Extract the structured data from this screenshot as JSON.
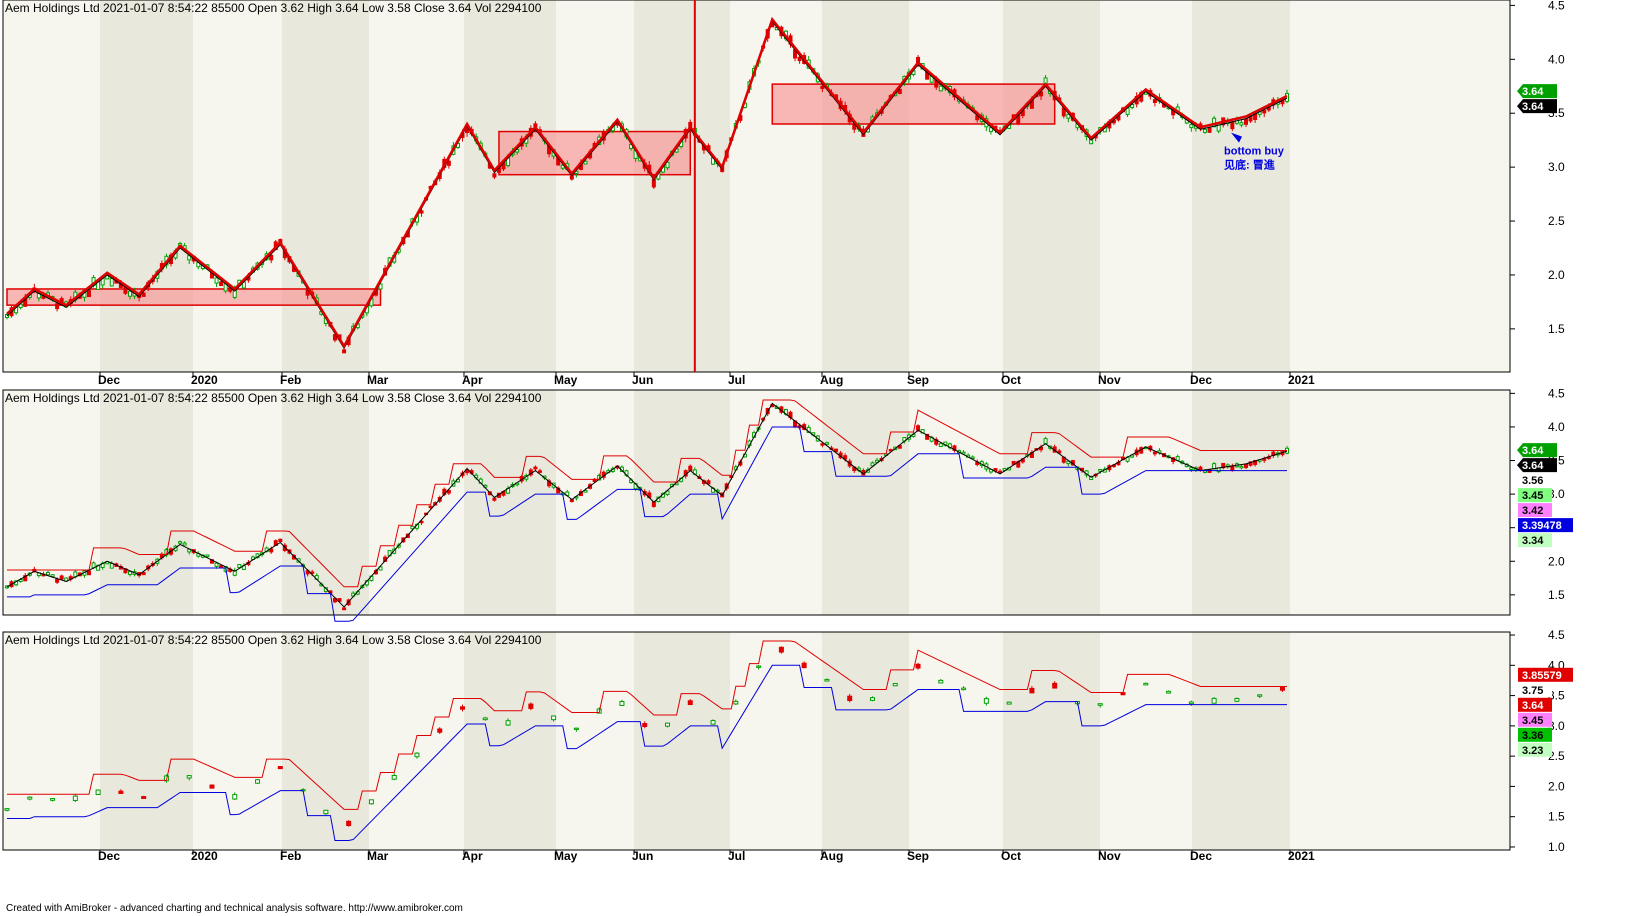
{
  "header": {
    "text": "Aem Holdings Ltd   2021-01-07 8:54:22  85500  Open 3.62  High 3.64  Low 3.58  Close 3.64  Vol 2294100"
  },
  "footer": {
    "text": "Created with AmiBroker - advanced charting and technical analysis software. http://www.amibroker.com"
  },
  "annotation": {
    "line1": "bottom buy",
    "line2": "见底: 冒進"
  },
  "colors": {
    "up": "#00a000",
    "down": "#e00000",
    "zigzag": "#000000",
    "trend": "#e00000",
    "box_fill": "#f8a0a0",
    "box_stroke": "#e00000",
    "support": "#0000e0",
    "resistance": "#e00000",
    "band_light": "#f6f6ee",
    "band_dark": "#e8e8dc"
  },
  "chart_data": [
    {
      "panel": "top",
      "type": "line",
      "description_ref": "price with zigzag, trend lines and consolidation boxes",
      "x_months": [
        "Dec",
        "2020",
        "Feb",
        "Mar",
        "Apr",
        "May",
        "Jun",
        "Jul",
        "Aug",
        "Sep",
        "Oct",
        "Nov",
        "Dec",
        "2021"
      ],
      "ylim": [
        1.1,
        4.55
      ],
      "yticks": [
        "4.5",
        "4.0",
        "3.5",
        "3.0",
        "2.5",
        "2.0",
        "1.5"
      ],
      "last_labels": [
        {
          "text": "3.64",
          "bg": "#00a000",
          "fg": "#ffffff"
        },
        {
          "text": "3.64",
          "bg": "#000000",
          "fg": "#ffffff"
        }
      ],
      "zigzag_points": [
        [
          0,
          1.62
        ],
        [
          6,
          1.85
        ],
        [
          13,
          1.7
        ],
        [
          22,
          2.0
        ],
        [
          29,
          1.8
        ],
        [
          38,
          2.25
        ],
        [
          50,
          1.85
        ],
        [
          60,
          2.28
        ],
        [
          74,
          1.32
        ],
        [
          101,
          3.38
        ],
        [
          107,
          2.95
        ],
        [
          116,
          3.35
        ],
        [
          124,
          2.92
        ],
        [
          134,
          3.42
        ],
        [
          142,
          2.88
        ],
        [
          150,
          3.35
        ],
        [
          157,
          2.98
        ],
        [
          168,
          4.35
        ],
        [
          188,
          3.3
        ],
        [
          200,
          3.95
        ],
        [
          218,
          3.3
        ],
        [
          228,
          3.75
        ],
        [
          238,
          3.25
        ],
        [
          250,
          3.7
        ],
        [
          262,
          3.35
        ],
        [
          272,
          3.45
        ],
        [
          281,
          3.64
        ]
      ],
      "boxes": [
        {
          "x0": 0,
          "x1": 82,
          "y0": 1.72,
          "y1": 1.87
        },
        {
          "x0": 108,
          "x1": 150,
          "y0": 2.93,
          "y1": 3.33
        },
        {
          "x0": 168,
          "x1": 230,
          "y0": 3.4,
          "y1": 3.77
        }
      ],
      "vline_x": 151
    },
    {
      "panel": "middle",
      "type": "line",
      "description_ref": "price with zigzag and trailing stop lines",
      "ylim": [
        1.2,
        4.55
      ],
      "yticks": [
        "4.5",
        "4.0",
        "3.5",
        "3.0",
        "2.5",
        "2.0",
        "1.5"
      ],
      "last_labels": [
        {
          "text": "3.64",
          "bg": "#00a000",
          "fg": "#ffffff"
        },
        {
          "text": "3.64",
          "bg": "#000000",
          "fg": "#ffffff"
        },
        {
          "text": "3.56",
          "bg": "#ffffff",
          "fg": "#000000"
        },
        {
          "text": "3.45",
          "bg": "#80ff80",
          "fg": "#000000"
        },
        {
          "text": "3.42",
          "bg": "#ff80ff",
          "fg": "#000000"
        },
        {
          "text": "3.39478",
          "bg": "#0000e0",
          "fg": "#ffffff"
        },
        {
          "text": "3.34",
          "bg": "#c0ffc0",
          "fg": "#000000"
        }
      ]
    },
    {
      "panel": "bottom",
      "type": "line",
      "description_ref": "weekly bars with step support / resistance lines",
      "ylim": [
        0.95,
        4.55
      ],
      "yticks": [
        "4.5",
        "4.0",
        "3.5",
        "3.0",
        "2.5",
        "2.0",
        "1.5",
        "1.0"
      ],
      "last_labels": [
        {
          "text": "3.85579",
          "bg": "#e00000",
          "fg": "#ffffff"
        },
        {
          "text": "3.75",
          "bg": "#ffffff",
          "fg": "#000000"
        },
        {
          "text": "3.64",
          "bg": "#e00000",
          "fg": "#ffffff"
        },
        {
          "text": "3.45",
          "bg": "#ff80ff",
          "fg": "#000000"
        },
        {
          "text": "3.36",
          "bg": "#00c000",
          "fg": "#000000"
        },
        {
          "text": "3.23",
          "bg": "#c0ffc0",
          "fg": "#000000"
        }
      ]
    }
  ]
}
